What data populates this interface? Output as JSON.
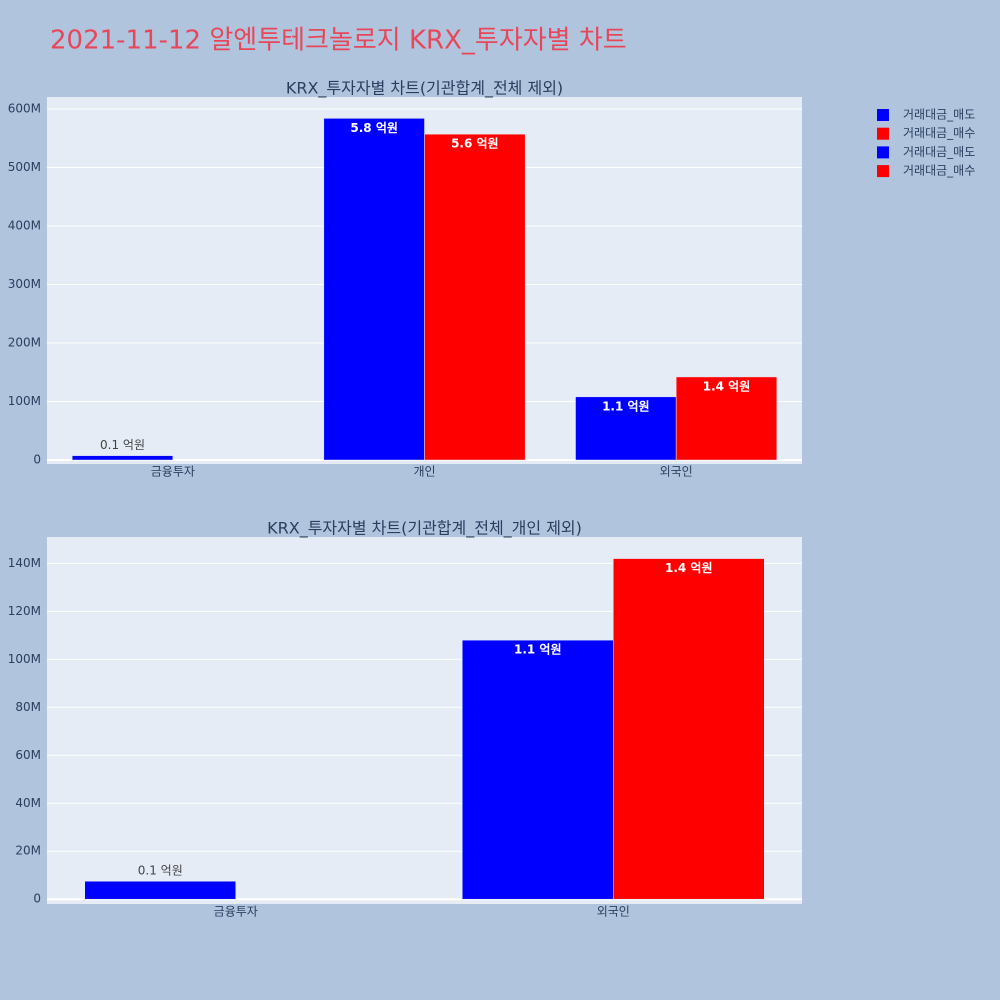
{
  "title": "2021-11-12 알엔투테크놀로지 KRX_투자자별 차트",
  "chart_data": [
    {
      "type": "bar",
      "title": "KRX_투자자별 차트(기관합계_전체 제외)",
      "categories": [
        "금융투자",
        "개인",
        "외국인"
      ],
      "series": [
        {
          "name": "거래대금_매도",
          "color": "#0000ff",
          "values": [
            7500000,
            584000000,
            108000000
          ],
          "value_labels": [
            "0.1 억원",
            "5.8 억원",
            "1.1 억원"
          ]
        },
        {
          "name": "거래대금_매수",
          "color": "#ff0000",
          "values": [
            null,
            557000000,
            142000000
          ],
          "value_labels": [
            null,
            "5.6 억원",
            "1.4 억원"
          ]
        }
      ],
      "ylim": [
        -6800000,
        620500000
      ],
      "yticks": [
        0,
        {
          "value": 100000000,
          "label": "100M"
        },
        {
          "value": 200000000,
          "label": "200M"
        },
        {
          "value": 300000000,
          "label": "300M"
        },
        {
          "value": 400000000,
          "label": "400M"
        },
        {
          "value": 500000000,
          "label": "500M"
        },
        {
          "value": 600000000,
          "label": "600M"
        }
      ],
      "grid": true
    },
    {
      "type": "bar",
      "title": "KRX_투자자별 차트(기관합계_전체_개인 제외)",
      "categories": [
        "금융투자",
        "외국인"
      ],
      "series": [
        {
          "name": "거래대금_매도",
          "color": "#0000ff",
          "values": [
            7500000,
            108000000
          ],
          "value_labels": [
            "0.1 억원",
            "1.1 억원"
          ]
        },
        {
          "name": "거래대금_매수",
          "color": "#ff0000",
          "values": [
            null,
            142000000
          ],
          "value_labels": [
            null,
            "1.4 억원"
          ]
        }
      ],
      "ylim": [
        -2000000,
        151000000
      ],
      "yticks": [
        0,
        {
          "value": 20000000,
          "label": "20M"
        },
        {
          "value": 40000000,
          "label": "40M"
        },
        {
          "value": 60000000,
          "label": "60M"
        },
        {
          "value": 80000000,
          "label": "80M"
        },
        {
          "value": 100000000,
          "label": "100M"
        },
        {
          "value": 120000000,
          "label": "120M"
        },
        {
          "value": 140000000,
          "label": "140M"
        }
      ],
      "grid": true
    }
  ]
}
